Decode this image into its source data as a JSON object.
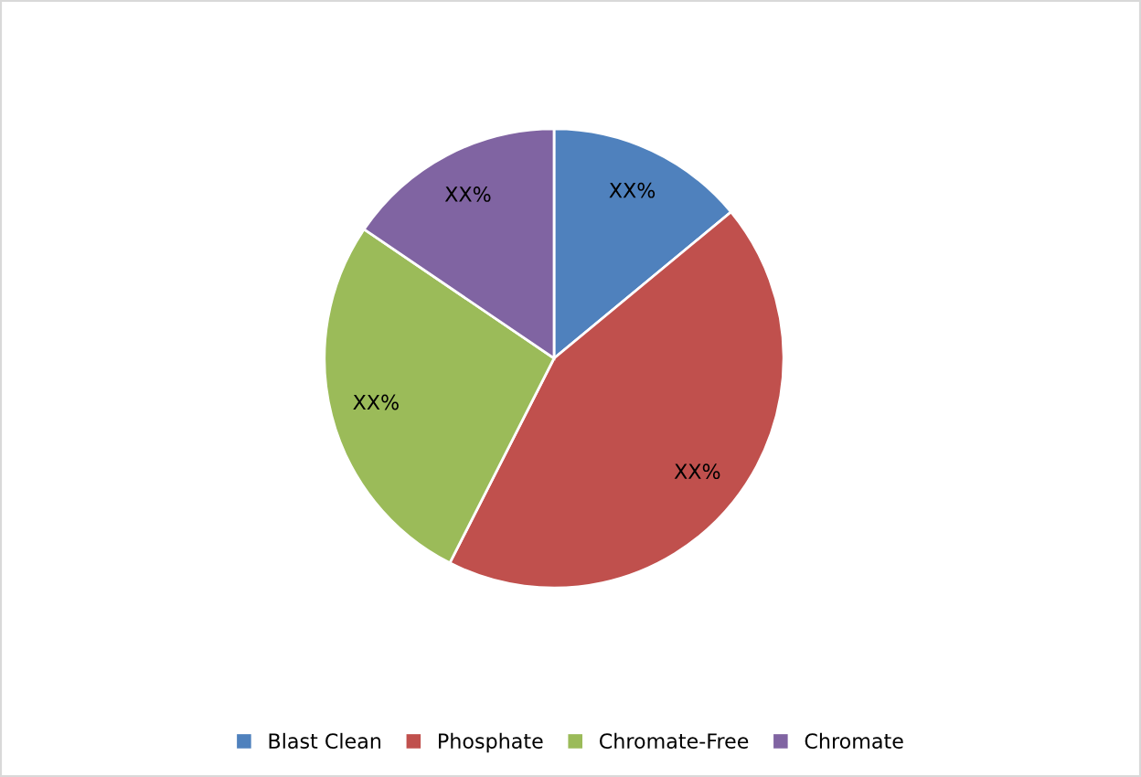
{
  "chart_data": {
    "type": "pie",
    "categories": [
      "Blast Clean",
      "Phosphate",
      "Chromate-Free",
      "Chromate"
    ],
    "values": [
      14,
      43.5,
      27,
      15.5
    ],
    "colors": [
      "#4f81bd",
      "#c0504d",
      "#9bbb59",
      "#8064a2"
    ],
    "value_labels": [
      "XX%",
      "XX%",
      "XX%",
      "XX%"
    ],
    "legend": "bottom"
  }
}
